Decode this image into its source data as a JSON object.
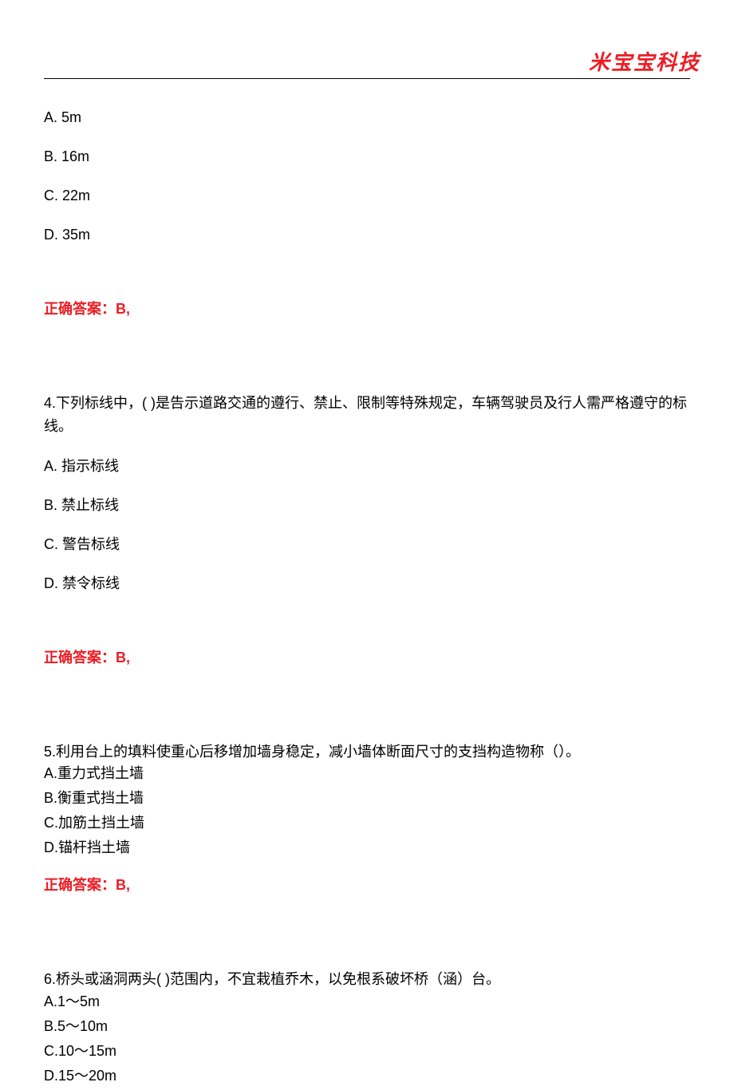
{
  "header": {
    "logo": "米宝宝科技"
  },
  "q3": {
    "options": {
      "a": "A.  5m",
      "b": "B.  16m",
      "c": "C.  22m",
      "d": "D.  35m"
    },
    "answer": "正确答案：B,"
  },
  "q4": {
    "text": "4.下列标线中，(    )是告示道路交通的遵行、禁止、限制等特殊规定，车辆驾驶员及行人需严格遵守的标线。",
    "options": {
      "a": "A.   指示标线",
      "b": "B.   禁止标线",
      "c": "C.   警告标线",
      "d": "D.   禁令标线"
    },
    "answer": "正确答案：B,"
  },
  "q5": {
    "text": "5.利用台上的填料使重心后移增加墙身稳定，减小墙体断面尺寸的支挡构造物称（）。",
    "options": {
      "a": "A.重力式挡土墙",
      "b": "B.衡重式挡土墙",
      "c": "C.加筋土挡土墙",
      "d": "D.锚杆挡土墙"
    },
    "answer": "正确答案：B,"
  },
  "q6": {
    "text": "6.桥头或涵洞两头( )范围内，不宜栽植乔木，以免根系破坏桥（涵）台。",
    "options": {
      "a": "A.1～5m",
      "b": "B.5～10m",
      "c": "C.10～15m",
      "d": "D.15～20m"
    }
  },
  "colors": {
    "text": "#000000",
    "answer": "#ed1c24",
    "logo": "#ed1c24",
    "background": "#ffffff",
    "divider": "#000000"
  },
  "typography": {
    "body_fontsize": 18,
    "logo_fontsize": 26,
    "body_font": "SimSun",
    "logo_font": "STXingkai"
  }
}
